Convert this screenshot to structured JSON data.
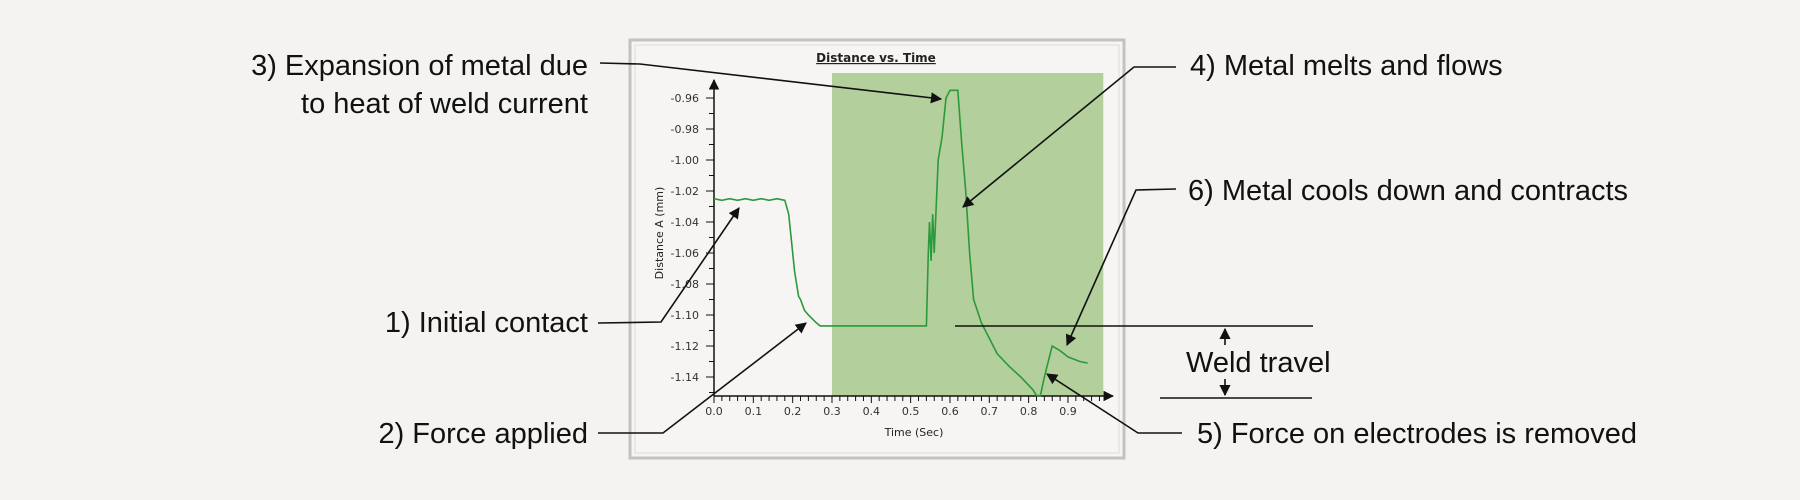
{
  "chart_data": {
    "type": "line",
    "title": "Distance vs. Time",
    "xlabel": "Time (Sec)",
    "ylabel": "Distance A (mm)",
    "xlim": [
      0.0,
      1.0
    ],
    "ylim": [
      -1.152,
      -0.945
    ],
    "x_ticks": [
      "0.0",
      "0.1",
      "0.2",
      "0.3",
      "0.4",
      "0.5",
      "0.6",
      "0.7",
      "0.8",
      "0.9"
    ],
    "y_ticks": [
      "-0.96",
      "-0.98",
      "-1.00",
      "-1.02",
      "-1.04",
      "-1.06",
      "-1.08",
      "-1.10",
      "-1.12",
      "-1.14"
    ],
    "grid": false,
    "highlight_region": {
      "x_start": 0.3,
      "x_end": 1.0,
      "color": "#b3cf9c"
    },
    "series_color": "#2a9a3a",
    "x": [
      0,
      0.02,
      0.04,
      0.06,
      0.08,
      0.1,
      0.12,
      0.14,
      0.16,
      0.18,
      0.19,
      0.2,
      0.205,
      0.21,
      0.215,
      0.22,
      0.23,
      0.24,
      0.26,
      0.27,
      0.3,
      0.35,
      0.4,
      0.45,
      0.5,
      0.54,
      0.545,
      0.548,
      0.552,
      0.556,
      0.56,
      0.565,
      0.57,
      0.58,
      0.59,
      0.6,
      0.62,
      0.63,
      0.64,
      0.65,
      0.66,
      0.68,
      0.7,
      0.72,
      0.75,
      0.78,
      0.81,
      0.82,
      0.83,
      0.84,
      0.845,
      0.86,
      0.88,
      0.9,
      0.93,
      0.95
    ],
    "y": [
      -1.025,
      -1.026,
      -1.025,
      -1.026,
      -1.025,
      -1.026,
      -1.025,
      -1.026,
      -1.025,
      -1.026,
      -1.035,
      -1.06,
      -1.072,
      -1.08,
      -1.088,
      -1.09,
      -1.097,
      -1.1,
      -1.105,
      -1.107,
      -1.107,
      -1.107,
      -1.107,
      -1.107,
      -1.107,
      -1.107,
      -1.06,
      -1.04,
      -1.065,
      -1.035,
      -1.06,
      -1.03,
      -1.0,
      -0.985,
      -0.96,
      -0.955,
      -0.955,
      -0.99,
      -1.02,
      -1.06,
      -1.09,
      -1.105,
      -1.115,
      -1.125,
      -1.133,
      -1.14,
      -1.148,
      -1.152,
      -1.152,
      -1.14,
      -1.135,
      -1.12,
      -1.123,
      -1.127,
      -1.13,
      -1.131
    ]
  },
  "annotations": {
    "expansion_line1": "3) Expansion of metal due",
    "expansion_line2": "to heat of weld current",
    "initial_contact": "1) Initial contact",
    "force_applied": "2) Force applied",
    "melts": "4) Metal melts and flows",
    "cools": "6) Metal cools down and contracts",
    "weld_travel": "Weld travel",
    "force_removed": "5) Force on electrodes is removed"
  }
}
